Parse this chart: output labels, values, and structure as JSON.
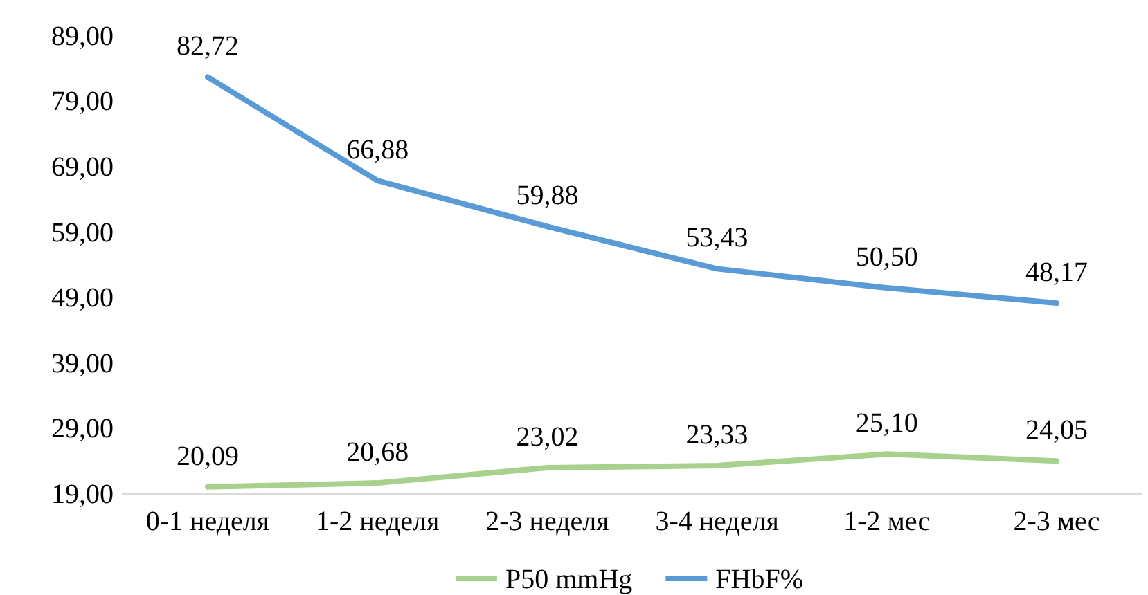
{
  "chart_data": {
    "type": "line",
    "categories": [
      "0-1 неделя",
      "1-2 неделя",
      "2-3 неделя",
      "3-4 неделя",
      "1-2 мес",
      "2-3 мес"
    ],
    "series": [
      {
        "name": "P50 mmHg",
        "color": "#a9d18e",
        "values": [
          20.09,
          20.68,
          23.02,
          23.33,
          25.1,
          24.05
        ],
        "value_labels": [
          "20,09",
          "20,68",
          "23,02",
          "23,33",
          "25,10",
          "24,05"
        ]
      },
      {
        "name": "FHbF%",
        "color": "#5b9bd5",
        "values": [
          82.72,
          66.88,
          59.88,
          53.43,
          50.5,
          48.17
        ],
        "value_labels": [
          "82,72",
          "66,88",
          "59,88",
          "53,43",
          "50,50",
          "48,17"
        ]
      }
    ],
    "ylim": [
      19,
      89
    ],
    "yticks": [
      {
        "value": 19,
        "label": "19,00"
      },
      {
        "value": 29,
        "label": "29,00"
      },
      {
        "value": 39,
        "label": "39,00"
      },
      {
        "value": 49,
        "label": "49,00"
      },
      {
        "value": 59,
        "label": "59,00"
      },
      {
        "value": 69,
        "label": "69,00"
      },
      {
        "value": 79,
        "label": "79,00"
      },
      {
        "value": 89,
        "label": "89,00"
      }
    ],
    "grid": false,
    "legend": "bottom",
    "marker": "none",
    "line_style": "solid"
  }
}
